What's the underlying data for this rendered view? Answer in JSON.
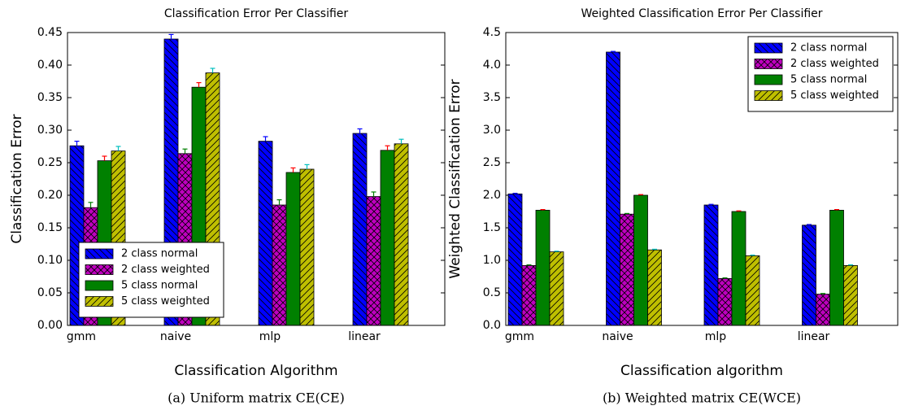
{
  "chart_data": [
    {
      "type": "bar",
      "title": "Classification Error Per Classifier",
      "x_label": "Classification Algorithm",
      "y_label": "Classification Error",
      "caption": "(a) Uniform matrix CE(CE)",
      "categories": [
        "gmm",
        "naive",
        "mlp",
        "linear"
      ],
      "series": [
        {
          "name": "2 class normal",
          "color": "#0000ff",
          "hatch": "\\",
          "error_color": "#0000ff",
          "values": [
            0.276,
            0.44,
            0.283,
            0.295
          ],
          "errors": [
            0.007,
            0.007,
            0.007,
            0.007
          ]
        },
        {
          "name": "2 class weighted",
          "color": "#bf00bf",
          "hatch": "x",
          "error_color": "#008000",
          "values": [
            0.181,
            0.264,
            0.185,
            0.198
          ],
          "errors": [
            0.008,
            0.007,
            0.008,
            0.007
          ]
        },
        {
          "name": "5 class normal",
          "color": "#008000",
          "hatch": "",
          "error_color": "#ff0000",
          "values": [
            0.253,
            0.366,
            0.235,
            0.269
          ],
          "errors": [
            0.007,
            0.007,
            0.007,
            0.007
          ]
        },
        {
          "name": "5 class weighted",
          "color": "#bfbf00",
          "hatch": "/",
          "error_color": "#00bfbf",
          "values": [
            0.268,
            0.388,
            0.24,
            0.279
          ],
          "errors": [
            0.007,
            0.007,
            0.007,
            0.007
          ]
        }
      ],
      "ylim": [
        0,
        0.45
      ],
      "yticks": [
        {
          "value": 0,
          "label": "0.00"
        },
        0.05,
        {
          "value": 0.1,
          "label": "0.10"
        },
        0.15,
        {
          "value": 0.2,
          "label": "0.20"
        },
        0.25,
        {
          "value": 0.3,
          "label": "0.30"
        },
        0.35,
        {
          "value": 0.4,
          "label": "0.40"
        },
        0.45
      ],
      "legend": "lower left"
    },
    {
      "type": "bar",
      "title": "Weighted Classification Error Per Classifier",
      "x_label": "Classification algorithm",
      "y_label": "Weighted Classification Error",
      "caption": "(b) Weighted matrix CE(WCE)",
      "categories": [
        "gmm",
        "naive",
        "mlp",
        "linear"
      ],
      "series": [
        {
          "name": "2 class normal",
          "color": "#0000ff",
          "hatch": "\\",
          "error_color": "#0000ff",
          "values": [
            2.02,
            4.2,
            1.85,
            1.54
          ],
          "errors": [
            0.01,
            0.01,
            0.01,
            0.01
          ]
        },
        {
          "name": "2 class weighted",
          "color": "#bf00bf",
          "hatch": "x",
          "error_color": "#008000",
          "values": [
            0.92,
            1.71,
            0.72,
            0.48
          ],
          "errors": [
            0.01,
            0.01,
            0.01,
            0.01
          ]
        },
        {
          "name": "5 class normal",
          "color": "#008000",
          "hatch": "",
          "error_color": "#ff0000",
          "values": [
            1.77,
            2.0,
            1.75,
            1.77
          ],
          "errors": [
            0.01,
            0.01,
            0.01,
            0.01
          ]
        },
        {
          "name": "5 class weighted",
          "color": "#bfbf00",
          "hatch": "/",
          "error_color": "#00bfbf",
          "values": [
            1.13,
            1.16,
            1.07,
            0.92
          ],
          "errors": [
            0.01,
            0.01,
            0.01,
            0.01
          ]
        }
      ],
      "ylim": [
        0,
        4.5
      ],
      "yticks": [
        {
          "value": 0,
          "label": "0.0"
        },
        0.5,
        {
          "value": 1,
          "label": "1.0"
        },
        1.5,
        {
          "value": 2,
          "label": "2.0"
        },
        2.5,
        {
          "value": 3,
          "label": "3.0"
        },
        3.5,
        {
          "value": 4,
          "label": "4.0"
        },
        4.5
      ],
      "legend": "upper right"
    }
  ]
}
